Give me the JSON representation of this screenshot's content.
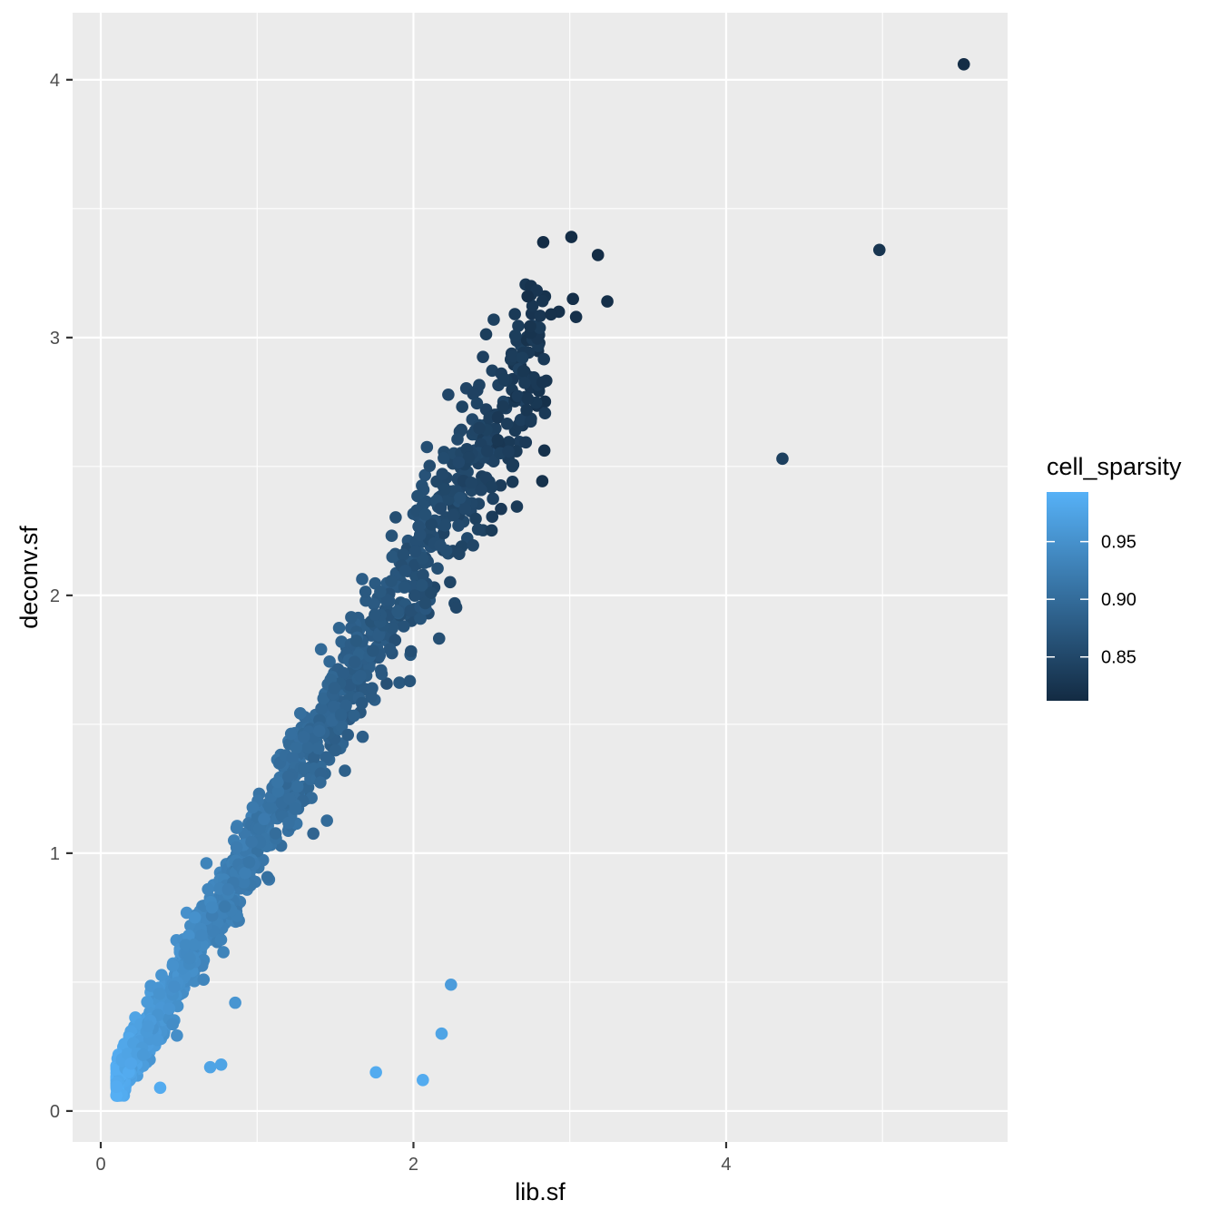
{
  "chart_data": {
    "type": "scatter",
    "xlabel": "lib.sf",
    "ylabel": "deconv.sf",
    "xlim": [
      -0.18,
      5.8
    ],
    "ylim": [
      -0.12,
      4.26
    ],
    "x_ticks": [
      0,
      2,
      4
    ],
    "y_ticks": [
      0,
      1,
      2,
      3,
      4
    ],
    "x_tick_labels": [
      "0",
      "2",
      "4"
    ],
    "y_tick_labels": [
      "0",
      "1",
      "2",
      "3",
      "4"
    ],
    "grid": true,
    "legend": {
      "title": "cell_sparsity",
      "placement": "right",
      "range": [
        0.812,
        0.993
      ],
      "breaks": [
        0.85,
        0.9,
        0.95
      ],
      "labels": [
        "0.85",
        "0.90",
        "0.95"
      ],
      "low_color": "#132B43",
      "high_color": "#56B1F7"
    },
    "colors": {
      "panel_background": "#EBEBEB",
      "grid_major": "#FFFFFF",
      "low": "#132B43",
      "high": "#56B1F7"
    },
    "outliers": [
      {
        "x": 5.52,
        "y": 4.06,
        "s": 0.815
      },
      {
        "x": 4.98,
        "y": 3.34,
        "s": 0.825
      },
      {
        "x": 4.36,
        "y": 2.53,
        "s": 0.84
      },
      {
        "x": 3.01,
        "y": 3.39,
        "s": 0.815
      },
      {
        "x": 2.83,
        "y": 3.37,
        "s": 0.815
      },
      {
        "x": 3.18,
        "y": 3.32,
        "s": 0.815
      },
      {
        "x": 2.73,
        "y": 3.16,
        "s": 0.818
      },
      {
        "x": 3.02,
        "y": 3.15,
        "s": 0.818
      },
      {
        "x": 3.24,
        "y": 3.14,
        "s": 0.818
      },
      {
        "x": 2.93,
        "y": 3.1,
        "s": 0.82
      },
      {
        "x": 2.88,
        "y": 3.09,
        "s": 0.82
      },
      {
        "x": 3.04,
        "y": 3.08,
        "s": 0.82
      },
      {
        "x": 2.24,
        "y": 0.49,
        "s": 0.965
      },
      {
        "x": 2.18,
        "y": 0.3,
        "s": 0.975
      },
      {
        "x": 1.76,
        "y": 0.15,
        "s": 0.985
      },
      {
        "x": 2.06,
        "y": 0.12,
        "s": 0.985
      },
      {
        "x": 0.86,
        "y": 0.42,
        "s": 0.955
      },
      {
        "x": 0.77,
        "y": 0.18,
        "s": 0.975
      },
      {
        "x": 0.7,
        "y": 0.17,
        "s": 0.975
      },
      {
        "x": 0.38,
        "y": 0.09,
        "s": 0.985
      }
    ],
    "cloud": {
      "point_count": 1500,
      "x_range": [
        0.1,
        2.85
      ],
      "slope": 1.05,
      "intercept": 0.0,
      "sparsity_at_min_x": 0.99,
      "sparsity_at_max_x": 0.825
    }
  }
}
